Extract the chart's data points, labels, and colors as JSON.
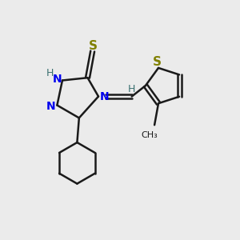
{
  "background_color": "#ebebeb",
  "bond_color": "#1a1a1a",
  "N_color": "#0000ee",
  "S_color": "#808000",
  "H_color": "#3a7070",
  "bond_width": 1.8,
  "figsize": [
    3.0,
    3.0
  ],
  "dpi": 100,
  "xlim": [
    0,
    12
  ],
  "ylim": [
    0,
    12
  ]
}
